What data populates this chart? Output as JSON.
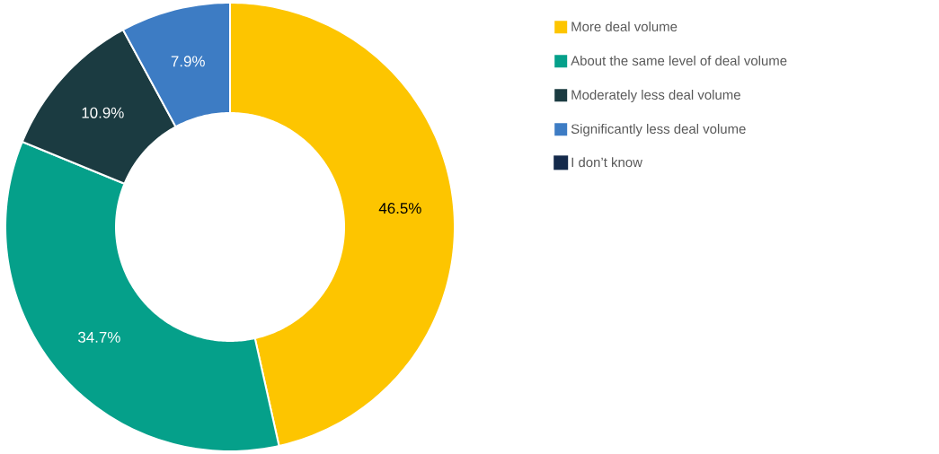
{
  "chart_data": {
    "type": "donut",
    "categories": [
      "More deal volume",
      "About the same level of deal volume",
      "Moderately less deal volume",
      "Significantly less deal volume",
      "I don’t know"
    ],
    "values": [
      46.5,
      34.7,
      10.9,
      7.9,
      0
    ],
    "value_labels": [
      "46.5%",
      "34.7%",
      "10.9%",
      "7.9%",
      null
    ],
    "colors": [
      "#fdc500",
      "#05a08a",
      "#1b3b41",
      "#3d7cc4",
      "#142a4b"
    ],
    "legend": "top right"
  }
}
